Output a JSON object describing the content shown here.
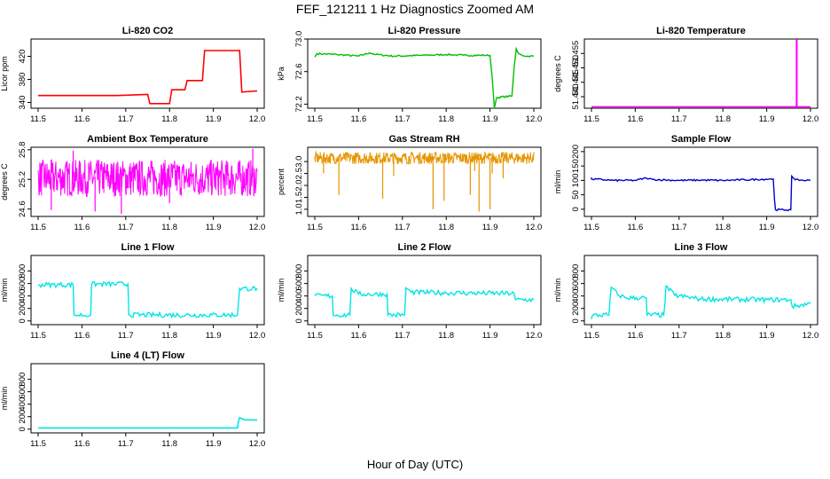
{
  "figure": {
    "title": "FEF_121211  1 Hz Diagnostics Zoomed AM",
    "xlabel": "Hour of Day (UTC)"
  },
  "chart_data": [
    {
      "type": "line",
      "title": "Li-820 CO2",
      "ylabel": "Licor ppm",
      "color": "#ff0000",
      "xlim": [
        11.5,
        12.0
      ],
      "x_ticks": [
        "11.5",
        "11.6",
        "11.7",
        "11.8",
        "11.9",
        "12.0"
      ],
      "ylim": [
        330,
        450
      ],
      "y_ticks": [
        "340",
        "380",
        "420"
      ],
      "series": [
        {
          "name": "",
          "style": "steps",
          "x": [
            11.5,
            11.68,
            11.75,
            11.755,
            11.8,
            11.805,
            11.835,
            11.84,
            11.875,
            11.88,
            11.96,
            11.965,
            12.0
          ],
          "y": [
            352,
            352,
            354,
            338,
            338,
            362,
            362,
            378,
            378,
            430,
            430,
            358,
            360
          ]
        }
      ]
    },
    {
      "type": "line",
      "title": "Li-820 Pressure",
      "ylabel": "kPa",
      "color": "#00c000",
      "xlim": [
        11.5,
        12.0
      ],
      "x_ticks": [
        "11.5",
        "11.6",
        "11.7",
        "11.8",
        "11.9",
        "12.0"
      ],
      "ylim": [
        72.15,
        73.0
      ],
      "y_ticks": [
        "72.2",
        "72.6",
        "73.0"
      ],
      "series": [
        {
          "name": "",
          "style": "noisy",
          "x": [
            11.5,
            11.505,
            11.55,
            11.6,
            11.625,
            11.64,
            11.68,
            11.75,
            11.8,
            11.84,
            11.9,
            11.905,
            11.91,
            11.915,
            11.95,
            11.955,
            11.96,
            11.965,
            11.98,
            12.0
          ],
          "y": [
            72.78,
            72.82,
            72.81,
            72.79,
            72.83,
            72.81,
            72.79,
            72.8,
            72.81,
            72.8,
            72.8,
            72.52,
            72.15,
            72.28,
            72.3,
            72.65,
            72.88,
            72.82,
            72.79,
            72.79
          ]
        }
      ]
    },
    {
      "type": "line",
      "title": "Li-820 Temperature",
      "ylabel": "degrees C",
      "color": "#ff00ff",
      "xlim": [
        11.5,
        12.0
      ],
      "x_ticks": [
        "11.5",
        "11.6",
        "11.7",
        "11.8",
        "11.9",
        "12.0"
      ],
      "ylim": [
        51.436,
        51.46
      ],
      "y_ticks": [
        "51.440",
        "51.445",
        "51.450",
        "51.455"
      ],
      "series": [
        {
          "name": "",
          "style": "steps",
          "x": [
            11.5,
            11.968,
            11.968,
            11.969,
            11.969,
            12.0
          ],
          "y": [
            51.4365,
            51.4365,
            51.4595,
            51.4595,
            51.4365,
            51.4365
          ]
        }
      ]
    },
    {
      "type": "line",
      "title": "Ambient Box Temperature",
      "ylabel": "degrees C",
      "color": "#ff00ff",
      "xlim": [
        11.5,
        12.0
      ],
      "x_ticks": [
        "11.5",
        "11.6",
        "11.7",
        "11.8",
        "11.9",
        "12.0"
      ],
      "ylim": [
        24.45,
        25.85
      ],
      "y_ticks": [
        "24.6",
        "25.2",
        "25.8"
      ],
      "series": [
        {
          "name": "",
          "style": "dense",
          "x": [
            11.5,
            12.0
          ],
          "y": [
            25.25,
            25.25
          ],
          "band": [
            24.85,
            25.6
          ],
          "spikes": [
            [
              11.53,
              24.58
            ],
            [
              11.63,
              24.55
            ],
            [
              11.69,
              24.5
            ],
            [
              11.58,
              25.78
            ],
            [
              11.99,
              25.82
            ],
            [
              11.8,
              24.72
            ]
          ]
        }
      ]
    },
    {
      "type": "line",
      "title": "Gas Stream RH",
      "ylabel": "percent",
      "color": "#e69500",
      "xlim": [
        11.5,
        12.0
      ],
      "x_ticks": [
        "11.5",
        "11.6",
        "11.7",
        "11.8",
        "11.9",
        "12.0"
      ],
      "ylim": [
        0.7,
        3.6
      ],
      "y_ticks": [
        "1.0",
        "1.5",
        "2.0",
        "2.5",
        "3.0"
      ],
      "series": [
        {
          "name": "",
          "style": "dense",
          "x": [
            11.5,
            12.0
          ],
          "y": [
            3.15,
            3.15
          ],
          "band": [
            2.9,
            3.4
          ],
          "spikes": [
            [
              11.52,
              2.5
            ],
            [
              11.555,
              1.6
            ],
            [
              11.655,
              1.45
            ],
            [
              11.68,
              2.4
            ],
            [
              11.77,
              1.0
            ],
            [
              11.795,
              1.35
            ],
            [
              11.855,
              1.6
            ],
            [
              11.865,
              2.6
            ],
            [
              11.875,
              0.9
            ],
            [
              11.9,
              1.0
            ],
            [
              11.905,
              2.5
            ],
            [
              11.93,
              2.3
            ]
          ]
        }
      ]
    },
    {
      "type": "line",
      "title": "Sample Flow",
      "ylabel": "ml/min",
      "color": "#0000cc",
      "xlim": [
        11.5,
        12.0
      ],
      "x_ticks": [
        "11.5",
        "11.6",
        "11.7",
        "11.8",
        "11.9",
        "12.0"
      ],
      "ylim": [
        -25,
        215
      ],
      "y_ticks": [
        "0",
        "50",
        "100",
        "150",
        "200"
      ],
      "series": [
        {
          "name": "",
          "style": "noisy",
          "x": [
            11.5,
            11.5,
            11.55,
            11.6,
            11.625,
            11.64,
            11.7,
            11.75,
            11.8,
            11.85,
            11.915,
            11.918,
            11.92,
            11.955,
            11.957,
            11.96,
            11.965,
            11.99,
            12.0
          ],
          "y": [
            110,
            105,
            100,
            100,
            108,
            103,
            100,
            101,
            100,
            102,
            105,
            30,
            -2,
            -2,
            115,
            110,
            102,
            100,
            100
          ]
        }
      ]
    },
    {
      "type": "line",
      "title": "Line 1 Flow",
      "ylabel": "ml/min",
      "color": "#00e5e5",
      "xlim": [
        11.5,
        12.0
      ],
      "x_ticks": [
        "11.5",
        "11.6",
        "11.7",
        "11.8",
        "11.9",
        "12.0"
      ],
      "ylim": [
        -60,
        1050
      ],
      "y_ticks": [
        "0",
        "200",
        "400",
        "600",
        "800"
      ],
      "series": [
        {
          "name": "",
          "style": "noisy_steps",
          "x": [
            11.5,
            11.58,
            11.582,
            11.62,
            11.622,
            11.705,
            11.707,
            11.955,
            11.96,
            12.0
          ],
          "y": [
            580,
            580,
            95,
            95,
            590,
            590,
            95,
            95,
            520,
            520
          ]
        }
      ]
    },
    {
      "type": "line",
      "title": "Line 2 Flow",
      "ylabel": "ml/min",
      "color": "#00e5e5",
      "xlim": [
        11.5,
        12.0
      ],
      "x_ticks": [
        "11.5",
        "11.6",
        "11.7",
        "11.8",
        "11.9",
        "12.0"
      ],
      "ylim": [
        -60,
        1050
      ],
      "y_ticks": [
        "0",
        "200",
        "400",
        "600",
        "800"
      ],
      "series": [
        {
          "name": "",
          "style": "noisy_steps",
          "x": [
            11.5,
            11.54,
            11.542,
            11.58,
            11.583,
            11.6,
            11.665,
            11.667,
            11.705,
            11.708,
            11.72,
            11.8,
            11.955,
            11.958,
            12.0
          ],
          "y": [
            400,
            400,
            95,
            95,
            520,
            430,
            430,
            95,
            95,
            530,
            460,
            450,
            440,
            340,
            340
          ]
        }
      ]
    },
    {
      "type": "line",
      "title": "Line 3 Flow",
      "ylabel": "ml/min",
      "color": "#00e5e5",
      "xlim": [
        11.5,
        12.0
      ],
      "x_ticks": [
        "11.5",
        "11.6",
        "11.7",
        "11.8",
        "11.9",
        "12.0"
      ],
      "ylim": [
        -60,
        1050
      ],
      "y_ticks": [
        "0",
        "200",
        "400",
        "600",
        "800"
      ],
      "series": [
        {
          "name": "",
          "style": "noisy_steps",
          "x": [
            11.5,
            11.502,
            11.54,
            11.542,
            11.545,
            11.56,
            11.58,
            11.625,
            11.627,
            11.665,
            11.668,
            11.67,
            11.69,
            11.75,
            11.9,
            11.955,
            11.958,
            12.0
          ],
          "y": [
            30,
            90,
            95,
            300,
            540,
            420,
            370,
            370,
            95,
            95,
            300,
            560,
            410,
            350,
            340,
            340,
            230,
            280
          ]
        }
      ]
    },
    {
      "type": "line",
      "title": "Line 4 (LT) Flow",
      "ylabel": "ml/min",
      "color": "#00e5e5",
      "xlim": [
        11.5,
        12.0
      ],
      "x_ticks": [
        "11.5",
        "11.6",
        "11.7",
        "11.8",
        "11.9",
        "12.0"
      ],
      "ylim": [
        -60,
        1050
      ],
      "y_ticks": [
        "0",
        "200",
        "400",
        "600",
        "800"
      ],
      "series": [
        {
          "name": "",
          "style": "steps",
          "x": [
            11.5,
            11.955,
            11.957,
            11.96,
            11.97,
            12.0
          ],
          "y": [
            20,
            20,
            110,
            185,
            150,
            145
          ]
        }
      ]
    }
  ]
}
